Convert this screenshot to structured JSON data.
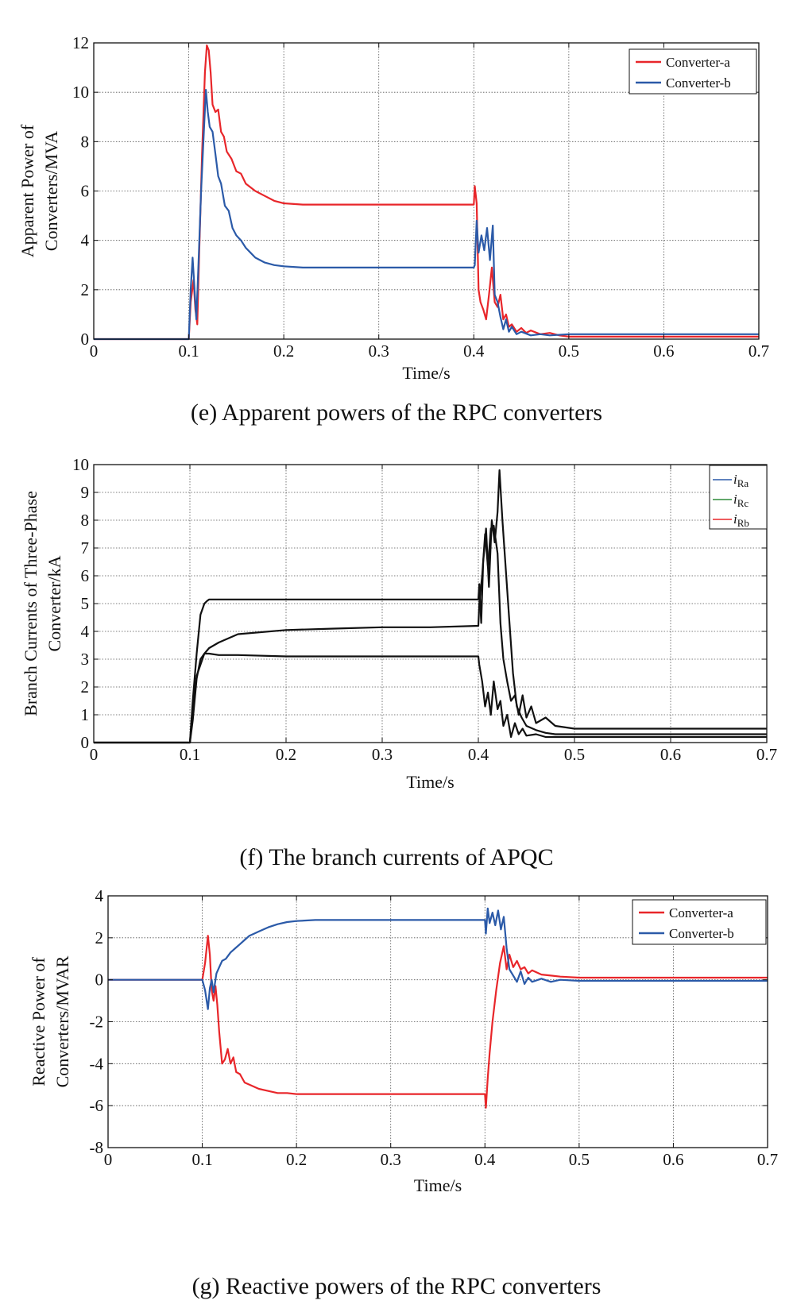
{
  "chart_data": [
    {
      "type": "line",
      "caption": "(e) Apparent powers of the RPC converters",
      "xlabel": "Time/s",
      "ylabel": [
        "Apparent Power of",
        "Converters/MVA"
      ],
      "xlim": [
        0,
        0.7
      ],
      "ylim": [
        0,
        12
      ],
      "xticks": [
        "0",
        "0.1",
        "0.2",
        "0.3",
        "0.4",
        "0.5",
        "0.6",
        "0.7"
      ],
      "yticks": [
        "0",
        "2",
        "4",
        "6",
        "8",
        "10",
        "12"
      ],
      "grid": true,
      "legend_position": "top-right",
      "series": [
        {
          "name": "Converter-a",
          "color": "#e8262a",
          "x": [
            0,
            0.1,
            0.102,
            0.105,
            0.107,
            0.109,
            0.111,
            0.114,
            0.117,
            0.119,
            0.121,
            0.123,
            0.125,
            0.128,
            0.131,
            0.134,
            0.137,
            0.14,
            0.145,
            0.15,
            0.155,
            0.16,
            0.17,
            0.18,
            0.19,
            0.2,
            0.22,
            0.25,
            0.3,
            0.35,
            0.4,
            0.401,
            0.403,
            0.405,
            0.407,
            0.41,
            0.413,
            0.416,
            0.419,
            0.422,
            0.425,
            0.428,
            0.431,
            0.434,
            0.437,
            0.44,
            0.445,
            0.45,
            0.455,
            0.46,
            0.47,
            0.48,
            0.49,
            0.5,
            0.55,
            0.6,
            0.65,
            0.7
          ],
          "y": [
            0,
            0,
            1.5,
            2.4,
            1.2,
            0.6,
            3.5,
            7.5,
            10.8,
            11.9,
            11.7,
            10.8,
            9.5,
            9.2,
            9.3,
            8.4,
            8.2,
            7.6,
            7.3,
            6.8,
            6.7,
            6.3,
            6.0,
            5.8,
            5.6,
            5.5,
            5.45,
            5.45,
            5.45,
            5.45,
            5.45,
            6.2,
            5.5,
            2.0,
            1.5,
            1.2,
            0.8,
            1.8,
            2.9,
            1.5,
            1.3,
            1.8,
            0.8,
            1.0,
            0.5,
            0.6,
            0.3,
            0.45,
            0.25,
            0.35,
            0.2,
            0.25,
            0.15,
            0.1,
            0.1,
            0.1,
            0.1,
            0.1
          ]
        },
        {
          "name": "Converter-b",
          "color": "#2b5aa8",
          "x": [
            0,
            0.1,
            0.102,
            0.104,
            0.106,
            0.108,
            0.11,
            0.113,
            0.116,
            0.118,
            0.12,
            0.122,
            0.125,
            0.128,
            0.131,
            0.134,
            0.138,
            0.142,
            0.146,
            0.15,
            0.155,
            0.16,
            0.165,
            0.17,
            0.18,
            0.19,
            0.2,
            0.22,
            0.25,
            0.3,
            0.35,
            0.4,
            0.401,
            0.403,
            0.405,
            0.408,
            0.411,
            0.414,
            0.417,
            0.42,
            0.422,
            0.425,
            0.428,
            0.431,
            0.434,
            0.437,
            0.44,
            0.445,
            0.45,
            0.46,
            0.47,
            0.48,
            0.5,
            0.55,
            0.6,
            0.65,
            0.7
          ],
          "y": [
            0,
            0,
            2.0,
            3.3,
            2.1,
            0.8,
            2.8,
            6.0,
            8.5,
            10.1,
            9.2,
            8.6,
            8.4,
            7.5,
            6.6,
            6.3,
            5.4,
            5.2,
            4.5,
            4.2,
            4.0,
            3.7,
            3.5,
            3.3,
            3.1,
            3.0,
            2.95,
            2.9,
            2.9,
            2.9,
            2.9,
            2.9,
            3.0,
            4.8,
            3.5,
            4.2,
            3.6,
            4.5,
            3.2,
            4.6,
            1.8,
            1.5,
            0.9,
            0.4,
            0.8,
            0.3,
            0.5,
            0.2,
            0.3,
            0.15,
            0.2,
            0.15,
            0.2,
            0.2,
            0.2,
            0.2,
            0.2
          ]
        }
      ]
    },
    {
      "type": "line",
      "caption": "(f) The branch currents of APQC",
      "xlabel": "Time/s",
      "ylabel": [
        "Branch Currents of Three-Phase",
        "Converter/kA"
      ],
      "xlim": [
        0,
        0.7
      ],
      "ylim": [
        0,
        10
      ],
      "xticks": [
        "0",
        "0.1",
        "0.2",
        "0.3",
        "0.4",
        "0.5",
        "0.6",
        "0.7"
      ],
      "yticks": [
        "0",
        "1",
        "2",
        "3",
        "4",
        "5",
        "6",
        "7",
        "8",
        "9",
        "10"
      ],
      "grid": true,
      "legend_position": "top-right",
      "legend": [
        {
          "main": "i",
          "sub": "Ra",
          "color": "#2b5aa8"
        },
        {
          "main": "i",
          "sub": "Rc",
          "color": "#2e8b3a"
        },
        {
          "main": "i",
          "sub": "Rb",
          "color": "#e8262a"
        }
      ],
      "series": [
        {
          "color": "#111111",
          "x": [
            0,
            0.1,
            0.103,
            0.107,
            0.111,
            0.115,
            0.118,
            0.12,
            0.13,
            0.15,
            0.2,
            0.3,
            0.35,
            0.4,
            0.401,
            0.403,
            0.405,
            0.408,
            0.411,
            0.414,
            0.417,
            0.42,
            0.422,
            0.425,
            0.428,
            0.432,
            0.436,
            0.44,
            0.445,
            0.45,
            0.46,
            0.47,
            0.48,
            0.5,
            0.55,
            0.6,
            0.7
          ],
          "y": [
            0,
            0,
            1.5,
            3.2,
            4.6,
            5.0,
            5.1,
            5.15,
            5.15,
            5.15,
            5.15,
            5.15,
            5.15,
            5.15,
            5.7,
            4.3,
            6.5,
            7.7,
            5.6,
            8.0,
            7.2,
            8.3,
            9.8,
            8.0,
            6.5,
            4.5,
            2.5,
            1.3,
            0.9,
            0.6,
            0.45,
            0.35,
            0.3,
            0.3,
            0.3,
            0.3,
            0.3
          ]
        },
        {
          "color": "#111111",
          "x": [
            0,
            0.1,
            0.103,
            0.107,
            0.111,
            0.115,
            0.12,
            0.13,
            0.15,
            0.2,
            0.25,
            0.3,
            0.35,
            0.4,
            0.401,
            0.404,
            0.407,
            0.41,
            0.413,
            0.416,
            0.42,
            0.423,
            0.426,
            0.43,
            0.434,
            0.438,
            0.442,
            0.446,
            0.45,
            0.455,
            0.46,
            0.47,
            0.48,
            0.5,
            0.55,
            0.6,
            0.7
          ],
          "y": [
            0,
            0,
            1.2,
            2.4,
            2.8,
            3.2,
            3.4,
            3.6,
            3.9,
            4.05,
            4.1,
            4.15,
            4.15,
            4.2,
            5.0,
            6.0,
            7.5,
            6.3,
            7.7,
            7.8,
            6.8,
            4.3,
            3.0,
            2.2,
            1.5,
            1.7,
            1.0,
            1.7,
            0.9,
            1.3,
            0.7,
            0.9,
            0.6,
            0.5,
            0.5,
            0.5,
            0.5
          ]
        },
        {
          "color": "#111111",
          "x": [
            0,
            0.1,
            0.103,
            0.107,
            0.111,
            0.115,
            0.12,
            0.13,
            0.15,
            0.2,
            0.3,
            0.35,
            0.4,
            0.401,
            0.404,
            0.407,
            0.41,
            0.413,
            0.416,
            0.42,
            0.423,
            0.426,
            0.43,
            0.434,
            0.438,
            0.442,
            0.446,
            0.45,
            0.46,
            0.47,
            0.48,
            0.5,
            0.55,
            0.6,
            0.7
          ],
          "y": [
            0,
            0,
            0.8,
            2.3,
            3.0,
            3.2,
            3.2,
            3.15,
            3.15,
            3.1,
            3.1,
            3.1,
            3.1,
            2.8,
            2.2,
            1.3,
            1.8,
            1.0,
            2.2,
            1.2,
            1.5,
            0.6,
            1.0,
            0.2,
            0.7,
            0.3,
            0.5,
            0.25,
            0.3,
            0.2,
            0.2,
            0.2,
            0.2,
            0.2,
            0.2
          ]
        }
      ]
    },
    {
      "type": "line",
      "caption": "(g) Reactive powers of the RPC converters",
      "xlabel": "Time/s",
      "ylabel": [
        "Reactive Power of",
        "Converters/MVAR"
      ],
      "xlim": [
        0,
        0.7
      ],
      "ylim": [
        -8,
        4
      ],
      "xticks": [
        "0",
        "0.1",
        "0.2",
        "0.3",
        "0.4",
        "0.5",
        "0.6",
        "0.7"
      ],
      "yticks": [
        "-8",
        "-6",
        "-4",
        "-2",
        "0",
        "2",
        "4"
      ],
      "grid": true,
      "legend_position": "top-right",
      "series": [
        {
          "name": "Converter-a",
          "color": "#e8262a",
          "x": [
            0,
            0.1,
            0.103,
            0.106,
            0.108,
            0.11,
            0.112,
            0.114,
            0.116,
            0.118,
            0.121,
            0.124,
            0.127,
            0.13,
            0.133,
            0.136,
            0.14,
            0.145,
            0.15,
            0.155,
            0.16,
            0.17,
            0.18,
            0.19,
            0.2,
            0.25,
            0.3,
            0.35,
            0.4,
            0.401,
            0.403,
            0.405,
            0.408,
            0.412,
            0.416,
            0.42,
            0.423,
            0.426,
            0.43,
            0.434,
            0.438,
            0.442,
            0.446,
            0.45,
            0.46,
            0.47,
            0.48,
            0.5,
            0.55,
            0.6,
            0.7
          ],
          "y": [
            0,
            0,
            0.8,
            2.1,
            1.2,
            -0.5,
            -1.0,
            -0.3,
            -1.2,
            -2.5,
            -4.0,
            -3.8,
            -3.3,
            -4.0,
            -3.7,
            -4.4,
            -4.5,
            -4.9,
            -5.0,
            -5.1,
            -5.2,
            -5.3,
            -5.4,
            -5.4,
            -5.45,
            -5.45,
            -5.45,
            -5.45,
            -5.45,
            -6.1,
            -4.7,
            -3.5,
            -2.0,
            -0.5,
            0.8,
            1.6,
            0.5,
            1.2,
            0.6,
            0.9,
            0.5,
            0.6,
            0.3,
            0.45,
            0.25,
            0.2,
            0.15,
            0.1,
            0.1,
            0.1,
            0.1
          ]
        },
        {
          "name": "Converter-b",
          "color": "#2b5aa8",
          "x": [
            0,
            0.1,
            0.103,
            0.106,
            0.108,
            0.11,
            0.112,
            0.115,
            0.118,
            0.121,
            0.125,
            0.13,
            0.135,
            0.14,
            0.145,
            0.15,
            0.155,
            0.16,
            0.17,
            0.18,
            0.19,
            0.2,
            0.22,
            0.25,
            0.3,
            0.35,
            0.4,
            0.401,
            0.403,
            0.405,
            0.408,
            0.411,
            0.414,
            0.417,
            0.42,
            0.423,
            0.426,
            0.43,
            0.434,
            0.438,
            0.442,
            0.446,
            0.45,
            0.46,
            0.47,
            0.48,
            0.5,
            0.55,
            0.6,
            0.7
          ],
          "y": [
            0,
            0,
            -0.5,
            -1.4,
            -0.4,
            0.0,
            -0.6,
            0.3,
            0.6,
            0.9,
            1.0,
            1.3,
            1.5,
            1.7,
            1.9,
            2.1,
            2.2,
            2.3,
            2.5,
            2.65,
            2.75,
            2.8,
            2.85,
            2.85,
            2.85,
            2.85,
            2.85,
            2.2,
            3.4,
            2.7,
            3.2,
            2.6,
            3.3,
            2.4,
            3.0,
            1.5,
            0.5,
            0.2,
            -0.1,
            0.4,
            -0.2,
            0.1,
            -0.1,
            0.05,
            -0.1,
            0.0,
            -0.05,
            -0.05,
            -0.05,
            -0.05
          ]
        }
      ]
    }
  ]
}
